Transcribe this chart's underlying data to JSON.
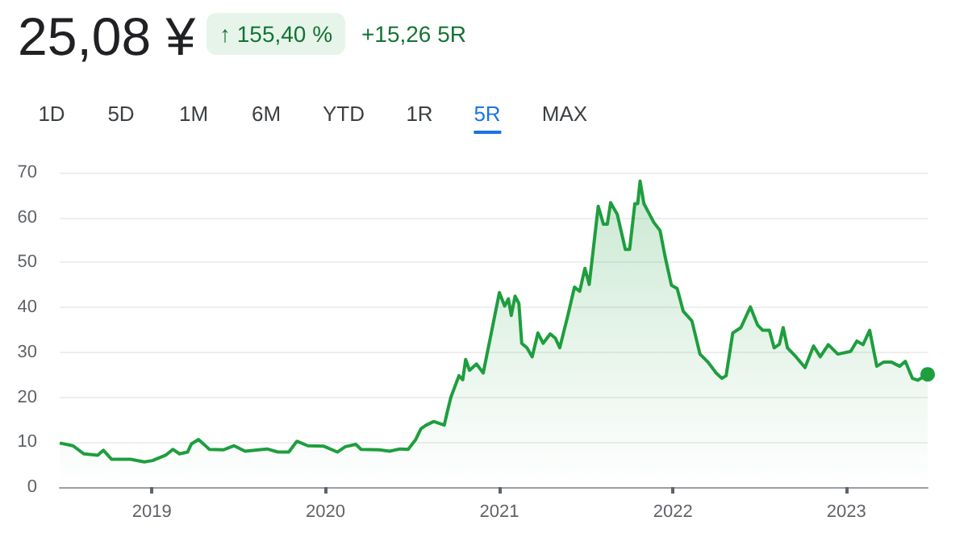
{
  "chart_data": {
    "type": "area",
    "title": "25,08 ¥",
    "annotations": [
      "↑ 155,40 %",
      "+15,26 5R",
      "1D",
      "5D",
      "1M",
      "6M",
      "YTD",
      "1R",
      "5R",
      "MAX"
    ],
    "x": [
      "2018-06-21",
      "2018-07-19",
      "2018-08-11",
      "2018-09-09",
      "2018-09-21",
      "2018-10-08",
      "2018-11-17",
      "2018-12-16",
      "2019-01-02",
      "2019-01-30",
      "2019-02-14",
      "2019-02-28",
      "2019-03-17",
      "2019-03-25",
      "2019-04-09",
      "2019-05-02",
      "2019-05-31",
      "2019-06-23",
      "2019-07-16",
      "2019-08-31",
      "2019-09-23",
      "2019-10-16",
      "2019-11-02",
      "2019-11-25",
      "2019-12-29",
      "2020-01-26",
      "2020-02-12",
      "2020-03-05",
      "2020-03-16",
      "2020-04-23",
      "2020-05-15",
      "2020-06-06",
      "2020-06-23",
      "2020-07-09",
      "2020-07-20",
      "2020-07-31",
      "2020-08-16",
      "2020-09-07",
      "2020-09-14",
      "2020-09-21",
      "2020-10-08",
      "2020-10-16",
      "2020-10-22",
      "2020-10-30",
      "2020-11-14",
      "2020-11-28",
      "2020-12-15",
      "2021-01-01",
      "2021-01-12",
      "2021-01-20",
      "2021-01-26",
      "2021-02-03",
      "2021-02-11",
      "2021-02-17",
      "2021-02-28",
      "2021-03-11",
      "2021-03-23",
      "2021-04-03",
      "2021-04-18",
      "2021-04-29",
      "2021-05-08",
      "2021-05-25",
      "2021-06-08",
      "2021-06-19",
      "2021-06-30",
      "2021-07-09",
      "2021-07-28",
      "2021-08-08",
      "2021-08-16",
      "2021-08-23",
      "2021-09-06",
      "2021-09-23",
      "2021-10-02",
      "2021-10-13",
      "2021-10-19",
      "2021-10-24",
      "2021-11-01",
      "2021-11-13",
      "2021-11-22",
      "2021-12-05",
      "2021-12-16",
      "2021-12-29",
      "2022-01-10",
      "2022-01-23",
      "2022-02-10",
      "2022-02-27",
      "2022-03-16",
      "2022-04-02",
      "2022-04-14",
      "2022-04-23",
      "2022-05-07",
      "2022-05-24",
      "2022-06-13",
      "2022-06-28",
      "2022-07-09",
      "2022-07-23",
      "2022-08-02",
      "2022-08-13",
      "2022-08-21",
      "2022-08-30",
      "2022-09-17",
      "2022-10-06",
      "2022-10-24",
      "2022-11-07",
      "2022-11-24",
      "2022-12-14",
      "2023-01-10",
      "2023-01-23",
      "2023-02-05",
      "2023-02-19",
      "2023-03-06",
      "2023-03-20",
      "2023-04-06",
      "2023-04-23",
      "2023-05-05",
      "2023-05-20",
      "2023-05-31",
      "2023-06-21"
    ],
    "series": [
      {
        "color": "#1e9e3e",
        "values": [
          9.8,
          9.2,
          7.4,
          7.1,
          8.2,
          6.2,
          6.2,
          5.6,
          5.9,
          7.1,
          8.4,
          7.4,
          7.8,
          9.6,
          10.6,
          8.4,
          8.3,
          9.2,
          8.0,
          8.5,
          7.8,
          7.8,
          10.2,
          9.2,
          9.1,
          7.8,
          9.0,
          9.5,
          8.4,
          8.3,
          8.0,
          8.5,
          8.4,
          10.6,
          13.0,
          13.8,
          14.6,
          13.8,
          17.0,
          20.0,
          24.8,
          23.9,
          28.4,
          26.0,
          27.4,
          25.4,
          34.3,
          43.3,
          40.3,
          41.9,
          38.2,
          42.5,
          40.9,
          32.0,
          31.0,
          29.0,
          34.3,
          32.0,
          34.1,
          33.1,
          31.0,
          38.2,
          44.5,
          43.6,
          48.7,
          45.1,
          62.5,
          58.5,
          58.5,
          63.3,
          60.7,
          52.9,
          52.9,
          63.1,
          63.1,
          68.1,
          63.1,
          60.7,
          58.9,
          57.1,
          51.1,
          44.9,
          44.2,
          39.1,
          37.0,
          29.6,
          27.8,
          25.4,
          24.2,
          24.8,
          34.3,
          35.5,
          40.1,
          36.1,
          34.9,
          34.9,
          31.0,
          31.8,
          35.5,
          31.0,
          29.0,
          26.6,
          31.4,
          29.0,
          31.7,
          29.6,
          30.2,
          32.5,
          31.7,
          34.9,
          26.9,
          27.8,
          27.8,
          26.9,
          28.0,
          24.2,
          23.8,
          25.1
        ]
      }
    ],
    "xlim": [
      "2018-06-21",
      "2023-06-21"
    ],
    "xticks": [
      "2019",
      "2020",
      "2021",
      "2022",
      "2023"
    ],
    "ylim": [
      0,
      70
    ],
    "yticks": [
      0,
      10,
      20,
      30,
      40,
      50,
      60,
      70
    ],
    "grid": "y"
  }
}
